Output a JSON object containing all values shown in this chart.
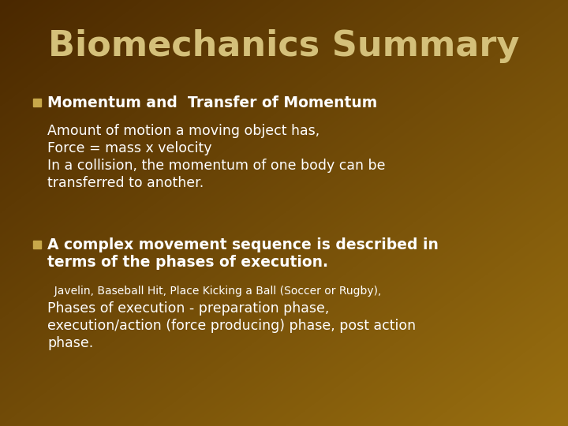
{
  "title": "Biomechanics Summary",
  "title_color": "#d4c07a",
  "title_fontsize": 32,
  "background_color_top_left": "#4a2800",
  "background_color_bottom_right": "#9a7010",
  "bullet_color": "#c8a84a",
  "bullet1_header": "Momentum and  Transfer of Momentum",
  "bullet1_lines": [
    "Amount of motion a moving object has,",
    "Force = mass x velocity",
    "In a collision, the momentum of one body can be\ntransferred to another."
  ],
  "bullet2_header": "A complex movement sequence is described in\nterms of the phases of execution.",
  "bullet2_sub1": "  Javelin, Baseball Hit, Place Kicking a Ball (Soccer or Rugby),",
  "bullet2_sub2": "Phases of execution - preparation phase,\nexecution/action (force producing) phase, post action\nphase.",
  "text_color": "#ffffff",
  "header_color": "#ffffff",
  "sub1_color": "#ffffff",
  "title_fontsize_pt": 32,
  "header1_fontsize": 13.5,
  "body_fontsize": 12.5,
  "sub1_fontsize": 10,
  "sub2_fontsize": 12.5
}
